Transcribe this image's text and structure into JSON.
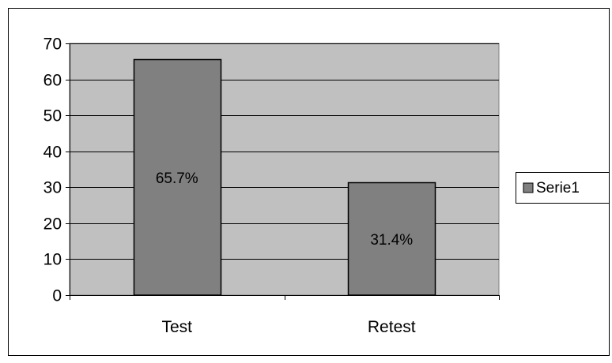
{
  "chart_data": {
    "type": "bar",
    "categories": [
      "Test",
      "Retest"
    ],
    "series": [
      {
        "name": "Serie1",
        "values": [
          65.7,
          31.4
        ],
        "color": "#808080"
      }
    ],
    "data_labels": [
      "65.7%",
      "31.4%"
    ],
    "ylim": [
      0,
      70
    ],
    "yticks": [
      0,
      10,
      20,
      30,
      40,
      50,
      60,
      70
    ],
    "grid": true,
    "legend": "right",
    "plot_background": "#c0c0c0",
    "title": "",
    "xlabel": "",
    "ylabel": ""
  }
}
